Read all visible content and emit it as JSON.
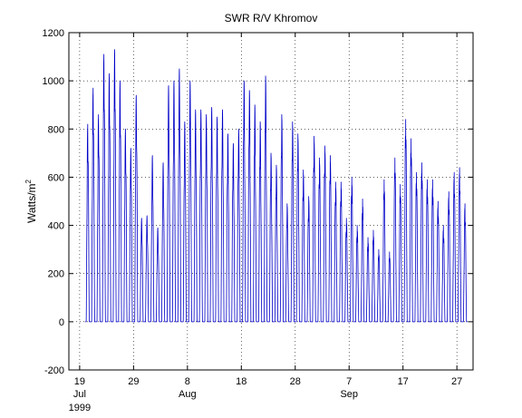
{
  "chart_data": {
    "type": "line",
    "title": "SWR R/V Khromov",
    "ylabel": "Watts/m",
    "ylabel_superscript": "2",
    "xlabel": "",
    "ylim": [
      -200,
      1200
    ],
    "yticks": [
      -200,
      0,
      200,
      400,
      600,
      800,
      1000,
      1200
    ],
    "xlim": [
      "1999-07-17",
      "1999-09-30"
    ],
    "xtick_dates": [
      "1999-07-19",
      "1999-07-29",
      "1999-08-08",
      "1999-08-18",
      "1999-08-28",
      "1999-09-07",
      "1999-09-17",
      "1999-09-27"
    ],
    "xtick_labels": [
      "19",
      "29",
      "8",
      "18",
      "28",
      "7",
      "17",
      "27"
    ],
    "month_labels": [
      {
        "date": "1999-07-19",
        "text": "Jul"
      },
      {
        "date": "1999-08-08",
        "text": "Aug"
      },
      {
        "date": "1999-09-07",
        "text": "Sep"
      }
    ],
    "year_label": {
      "date": "1999-07-19",
      "text": "1999"
    },
    "grid": true,
    "line_color": "#0000c8",
    "series": [
      {
        "start_date": "1999-07-20",
        "daily_peaks": [
          820,
          970,
          860,
          1110,
          1030,
          1130,
          1000,
          800,
          720,
          940,
          430,
          440,
          690,
          390,
          660,
          980,
          1000,
          1050,
          830,
          1000,
          880,
          880,
          860,
          890,
          850,
          880,
          780,
          740,
          800,
          1000,
          960,
          900,
          830,
          1020,
          700,
          650,
          860,
          490,
          830,
          780,
          630,
          520,
          770,
          680,
          730,
          690,
          580,
          580,
          430,
          600,
          400,
          510,
          350,
          380,
          300,
          590,
          290,
          680,
          570,
          840,
          760,
          620,
          660,
          590,
          590,
          500,
          400,
          540,
          620,
          640,
          490
        ]
      }
    ]
  }
}
